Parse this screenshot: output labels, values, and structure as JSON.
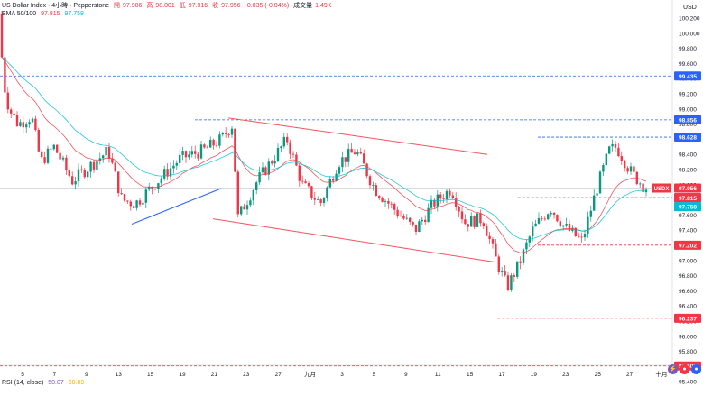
{
  "header": {
    "symbol_title": "US Dollar Index · 4小時 · Pepperstone",
    "ohlc": [
      {
        "label": "開",
        "value": "97.986"
      },
      {
        "label": "高",
        "value": "98.001"
      },
      {
        "label": "低",
        "value": "97.916"
      },
      {
        "label": "收",
        "value": "97.956"
      }
    ],
    "change": "-0.035 (-0.04%)",
    "volume_label": "成交量",
    "volume_value": "1.49K",
    "ema_label": "EMA 50/100",
    "ema_values": [
      "97.815",
      "97.758"
    ]
  },
  "rsi": {
    "label": "RSI (14, close)",
    "values": [
      "50.07",
      "60.89"
    ]
  },
  "price_axis": {
    "currency": "USD",
    "ticks": [
      "100.200",
      "100.000",
      "99.800",
      "99.600",
      "99.400",
      "99.200",
      "99.000",
      "98.800",
      "98.600",
      "98.400",
      "98.200",
      "98.000",
      "97.800",
      "97.600",
      "97.400",
      "97.200",
      "97.000",
      "96.800",
      "96.600",
      "96.400",
      "96.200",
      "96.000",
      "95.800",
      "95.600",
      "95.400"
    ],
    "symbol_tag": "USDX",
    "current_price": "97.956"
  },
  "time_axis": {
    "ticks": [
      "5",
      "7",
      "9",
      "13",
      "15",
      "19",
      "21",
      "23",
      "27",
      "九月",
      "3",
      "5",
      "9",
      "11",
      "15",
      "17",
      "19",
      "23",
      "25",
      "27",
      "十月"
    ]
  },
  "levels": [
    {
      "price": 99.435,
      "label": "99.435",
      "style": "blue",
      "from": 0.0
    },
    {
      "price": 98.856,
      "label": "98.856",
      "style": "blue",
      "from": 0.29
    },
    {
      "price": 98.628,
      "label": "98.628",
      "style": "blue",
      "from": 0.8
    },
    {
      "price": 97.831,
      "label": "97.831",
      "style": "gray",
      "from": 0.77
    },
    {
      "price": 97.202,
      "label": "97.202",
      "style": "red",
      "from": 0.8
    },
    {
      "price": 96.237,
      "label": "96.237",
      "style": "red",
      "from": 0.74
    },
    {
      "price": 95.608,
      "label": "95.608",
      "style": "red",
      "from": 0.0
    }
  ],
  "ema_tags": [
    {
      "price": 97.815,
      "label": "97.815",
      "color": "#f23645"
    },
    {
      "price": 97.758,
      "label": "97.758",
      "color": "#00bcd4"
    }
  ],
  "colors": {
    "up": "#089981",
    "down": "#f23645",
    "ema_fast": "#f23645",
    "ema_slow": "#00bcd4",
    "level_blue": "#2962ff",
    "level_red": "#f23645",
    "channel": "#f7525f",
    "trendline": "#2962ff"
  },
  "chart_data": {
    "type": "candlestick",
    "title": "US Dollar Index · 4小時 · Pepperstone",
    "ylabel": "USD",
    "ylim": [
      95.3,
      100.35
    ],
    "series": [
      {
        "name": "EMA 50",
        "last": 97.815
      },
      {
        "name": "EMA 100",
        "last": 97.758
      }
    ],
    "last_bar": {
      "open": 97.986,
      "high": 98.001,
      "low": 97.916,
      "close": 97.956,
      "change": -0.035,
      "change_pct": -0.04
    },
    "notable_levels": [
      99.435,
      98.856,
      98.628,
      97.831,
      97.202,
      96.237,
      95.608
    ]
  }
}
